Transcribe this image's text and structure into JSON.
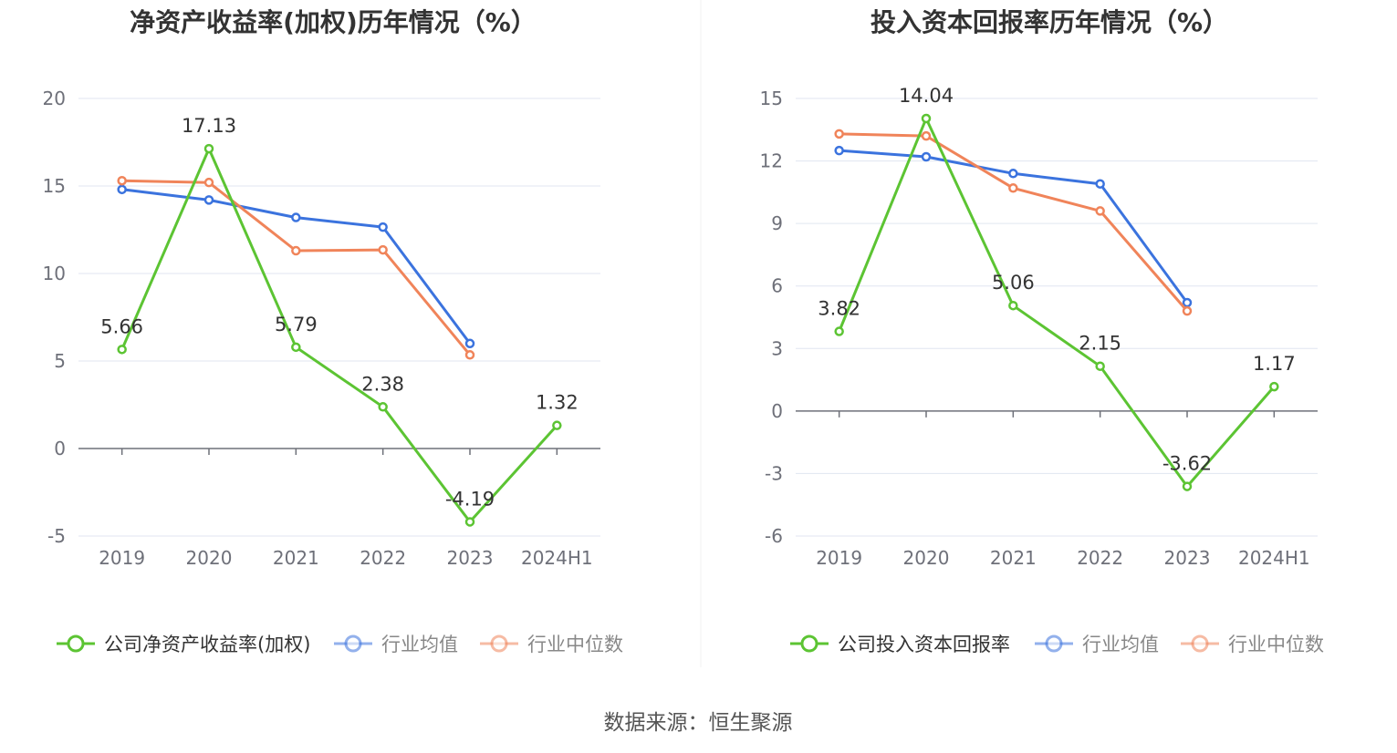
{
  "source": "数据来源：恒生聚源",
  "colors": {
    "company": "#5cc433",
    "industry_avg": "#3b73de",
    "industry_median": "#f0845a",
    "grid": "#e0e6f1",
    "axis": "#6e7079"
  },
  "chart_data": [
    {
      "type": "line",
      "title": "净资产收益率(加权)历年情况（%）",
      "categories": [
        "2019",
        "2020",
        "2021",
        "2022",
        "2023",
        "2024H1"
      ],
      "ylim": [
        -5,
        20
      ],
      "yticks": [
        -5,
        0,
        5,
        10,
        15,
        20
      ],
      "grid": true,
      "legend_position": "bottom",
      "series": [
        {
          "name": "公司净资产收益率(加权)",
          "key": "company",
          "values": [
            5.66,
            17.13,
            5.79,
            2.38,
            -4.19,
            1.32
          ],
          "labeled": true
        },
        {
          "name": "行业均值",
          "key": "industry_avg",
          "values": [
            14.8,
            14.2,
            13.2,
            12.65,
            6.0,
            null
          ],
          "labeled": false
        },
        {
          "name": "行业中位数",
          "key": "industry_median",
          "values": [
            15.3,
            15.2,
            11.3,
            11.35,
            5.35,
            null
          ],
          "labeled": false
        }
      ]
    },
    {
      "type": "line",
      "title": "投入资本回报率历年情况（%）",
      "categories": [
        "2019",
        "2020",
        "2021",
        "2022",
        "2023",
        "2024H1"
      ],
      "ylim": [
        -6,
        15
      ],
      "yticks": [
        -6,
        -3,
        0,
        3,
        6,
        9,
        12,
        15
      ],
      "grid": true,
      "legend_position": "bottom",
      "series": [
        {
          "name": "公司投入资本回报率",
          "key": "company",
          "values": [
            3.82,
            14.04,
            5.06,
            2.15,
            -3.62,
            1.17
          ],
          "labeled": true
        },
        {
          "name": "行业均值",
          "key": "industry_avg",
          "values": [
            12.5,
            12.2,
            11.4,
            10.9,
            5.2,
            null
          ],
          "labeled": false
        },
        {
          "name": "行业中位数",
          "key": "industry_median",
          "values": [
            13.3,
            13.2,
            10.7,
            9.6,
            4.8,
            null
          ],
          "labeled": false
        }
      ]
    }
  ]
}
